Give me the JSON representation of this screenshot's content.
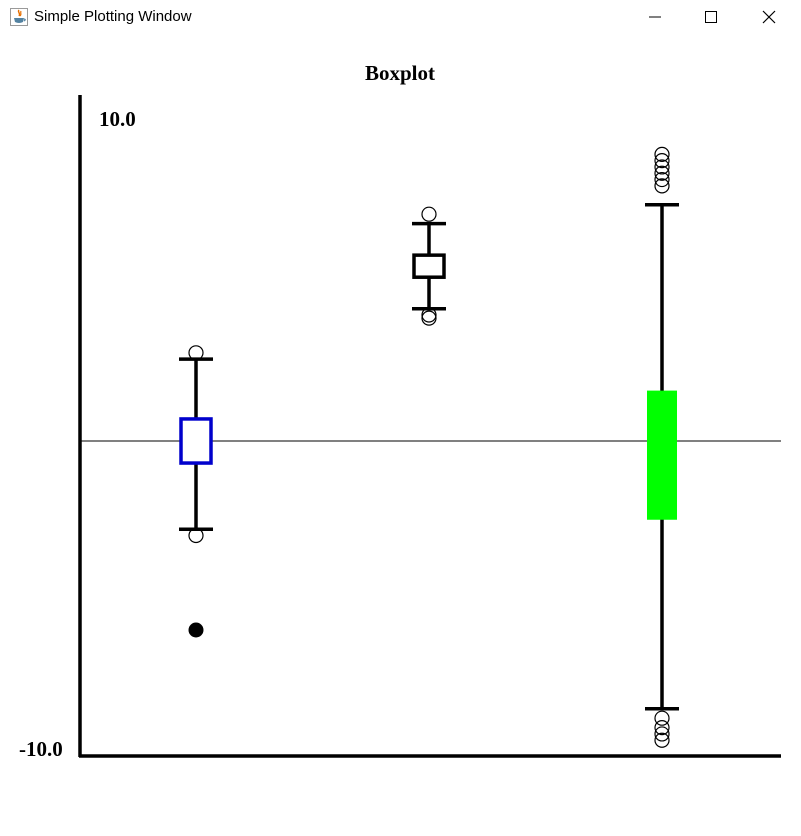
{
  "window": {
    "title": "Simple Plotting Window",
    "icons": {
      "app": "java-icon",
      "minimize": "minimize-icon",
      "maximize": "maximize-icon",
      "close": "close-icon"
    }
  },
  "chart_data": {
    "type": "boxplot",
    "title": "Boxplot",
    "xlabel": "",
    "ylabel": "",
    "ylim": [
      -10.0,
      10.0
    ],
    "y_tick_labels": [
      "10.0",
      "-10.0"
    ],
    "reference_line_y": 0.0,
    "grid": false,
    "boxes": [
      {
        "min": -2.8,
        "q1": -0.7,
        "median": -0.7,
        "q3": 0.7,
        "max": 2.6,
        "outliers": [
          2.8,
          -3.0
        ],
        "extreme_outliers": [
          -6.0
        ],
        "color": "#0000cc",
        "filled": false
      },
      {
        "min": 4.2,
        "q1": 5.2,
        "median": 5.2,
        "q3": 5.9,
        "max": 6.9,
        "outliers": [
          7.2,
          4.0,
          3.9
        ],
        "extreme_outliers": [],
        "color": "#000000",
        "filled": false
      },
      {
        "min": -8.5,
        "q1": -2.5,
        "median": -2.5,
        "q3": 1.6,
        "max": 7.5,
        "outliers": [
          9.1,
          8.9,
          8.7,
          8.5,
          8.3,
          8.1,
          -8.8,
          -9.1,
          -9.3,
          -9.5
        ],
        "extreme_outliers": [],
        "color": "#00ff00",
        "filled": true
      }
    ]
  }
}
